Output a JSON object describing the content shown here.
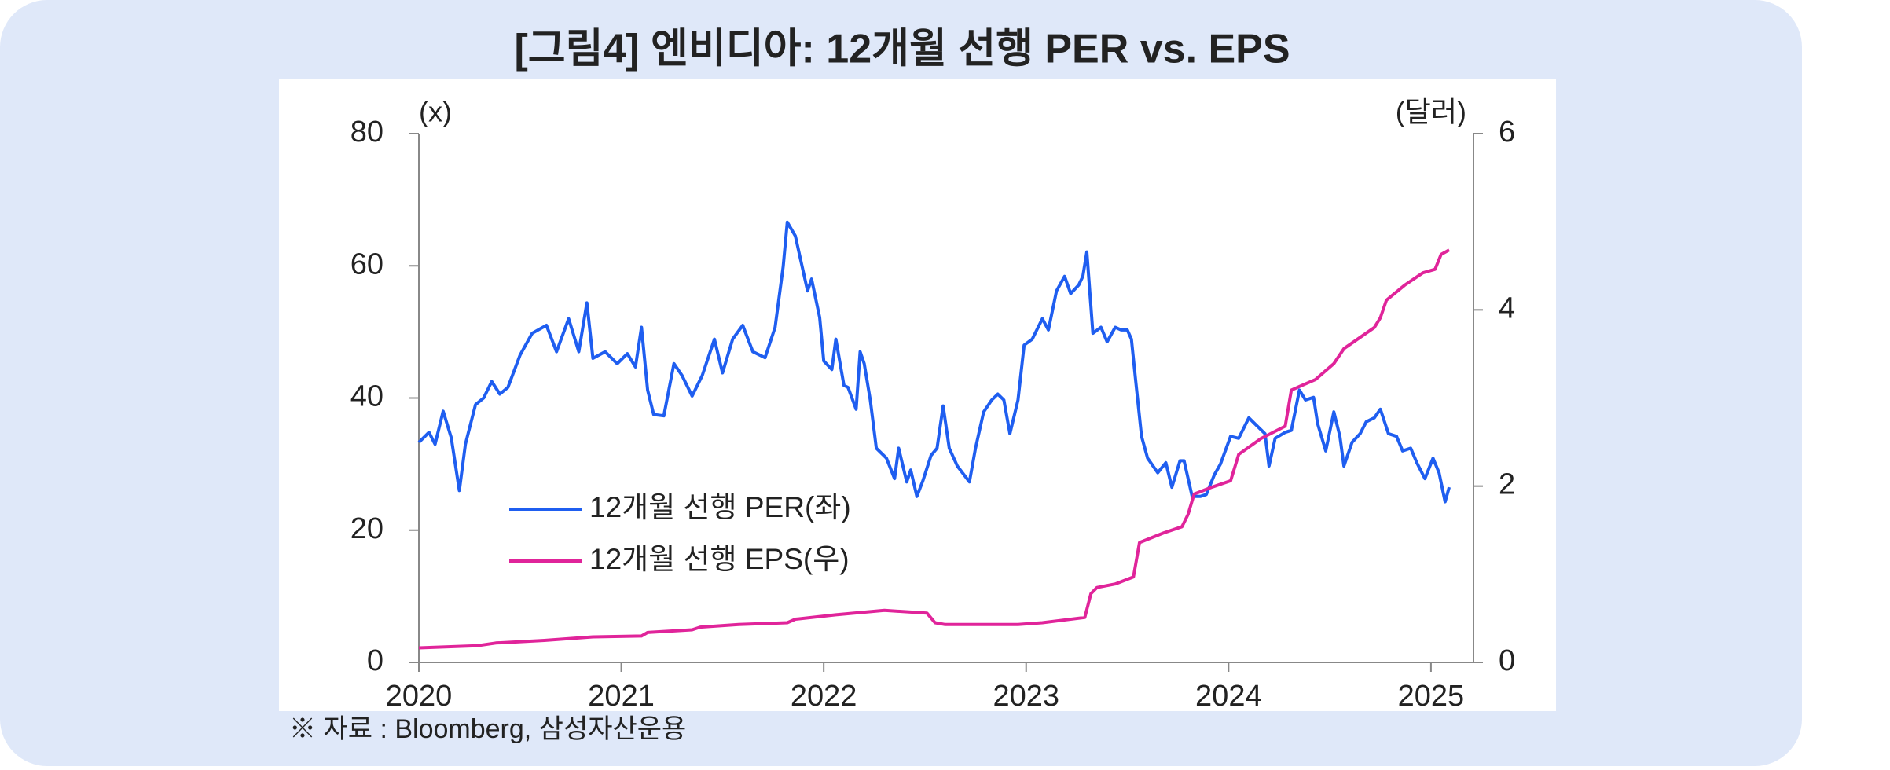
{
  "chart_data": {
    "type": "line",
    "title": "[그림4] 엔비디아: 12개월 선행 PER vs. EPS",
    "y_unit": "(x)",
    "y2_unit": "(달러)",
    "source": "※ 자료 : Bloomberg, 삼성자산운용",
    "xlim": [
      2020,
      2025.21
    ],
    "xticks": [
      2020,
      2021,
      2022,
      2023,
      2024,
      2025
    ],
    "ylim": [
      0,
      80
    ],
    "yticks": [
      0,
      20,
      40,
      60,
      80
    ],
    "y2lim": [
      0,
      6
    ],
    "y2ticks": [
      0,
      2,
      4,
      6
    ],
    "grid": false,
    "legend": "lower-left",
    "series": [
      {
        "name": "12개월 선행 PER(좌)",
        "color": "#1f5ef0",
        "x": [
          2020.0,
          2020.05,
          2020.08,
          2020.12,
          2020.16,
          2020.2,
          2020.23,
          2020.28,
          2020.32,
          2020.36,
          2020.4,
          2020.44,
          2020.5,
          2020.56,
          2020.63,
          2020.68,
          2020.74,
          2020.79,
          2020.83,
          2020.86,
          2020.92,
          2020.98,
          2021.03,
          2021.07,
          2021.1,
          2021.13,
          2021.16,
          2021.21,
          2021.26,
          2021.3,
          2021.35,
          2021.4,
          2021.46,
          2021.5,
          2021.55,
          2021.6,
          2021.65,
          2021.71,
          2021.76,
          2021.8,
          2021.82,
          2021.86,
          2021.88,
          2021.92,
          2021.94,
          2021.98,
          2022.0,
          2022.04,
          2022.06,
          2022.1,
          2022.12,
          2022.16,
          2022.18,
          2022.2,
          2022.23,
          2022.26,
          2022.31,
          2022.35,
          2022.37,
          2022.41,
          2022.43,
          2022.46,
          2022.49,
          2022.53,
          2022.56,
          2022.59,
          2022.62,
          2022.66,
          2022.72,
          2022.75,
          2022.79,
          2022.83,
          2022.86,
          2022.89,
          2022.92,
          2022.96,
          2022.99,
          2023.03,
          2023.08,
          2023.11,
          2023.15,
          2023.19,
          2023.22,
          2023.26,
          2023.28,
          2023.3,
          2023.33,
          2023.37,
          2023.4,
          2023.44,
          2023.47,
          2023.5,
          2023.52,
          2023.54,
          2023.57,
          2023.6,
          2023.65,
          2023.69,
          2023.72,
          2023.76,
          2023.78,
          2023.82,
          2023.86,
          2023.89,
          2023.93,
          2023.96,
          2024.01,
          2024.05,
          2024.1,
          2024.13,
          2024.18,
          2024.2,
          2024.23,
          2024.28,
          2024.31,
          2024.35,
          2024.38,
          2024.42,
          2024.44,
          2024.48,
          2024.52,
          2024.55,
          2024.57,
          2024.61,
          2024.65,
          2024.68,
          2024.72,
          2024.75,
          2024.79,
          2024.83,
          2024.86,
          2024.9,
          2024.93,
          2024.97,
          2025.01,
          2025.04,
          2025.07,
          2025.09
        ],
        "values": [
          33.3,
          34.8,
          33,
          38,
          34,
          26,
          33,
          39,
          40,
          42.5,
          40.6,
          41.6,
          46.5,
          49.8,
          51,
          47,
          52,
          47,
          54.4,
          46,
          47,
          45.2,
          46.7,
          44.7,
          50.7,
          41.2,
          37.5,
          37.3,
          45.2,
          43.4,
          40.3,
          43.4,
          48.9,
          43.8,
          48.9,
          51,
          47,
          46.1,
          50.7,
          59.9,
          66.6,
          64.5,
          61.7,
          56.2,
          58,
          52.2,
          45.6,
          44.3,
          48.9,
          41.9,
          41.6,
          38.3,
          47,
          45.2,
          39.7,
          32.4,
          30.9,
          27.8,
          32.4,
          27.3,
          29.1,
          25.1,
          27.5,
          31.3,
          32.4,
          38.8,
          32.4,
          29.7,
          27.3,
          32.4,
          37.9,
          39.7,
          40.6,
          39.7,
          34.6,
          39.7,
          48,
          48.9,
          52,
          50.3,
          56.2,
          58.4,
          55.8,
          57.1,
          58.4,
          62.1,
          49.8,
          50.7,
          48.5,
          50.7,
          50.3,
          50.3,
          48.9,
          43,
          34.2,
          30.9,
          28.7,
          30.2,
          26.5,
          30.5,
          30.5,
          25.1,
          25.1,
          25.4,
          28.4,
          30,
          34.2,
          33.9,
          37,
          36.1,
          34.6,
          29.7,
          33.9,
          34.8,
          35.1,
          41.2,
          39.7,
          40.1,
          36.1,
          32,
          37.9,
          34.2,
          29.7,
          33.3,
          34.6,
          36.4,
          37,
          38.3,
          34.6,
          34.2,
          32,
          32.4,
          30.2,
          27.8,
          30.9,
          28.7,
          24.3,
          26.5
        ]
      },
      {
        "name": "12개월 선행 EPS(우)",
        "color": "#e0249a",
        "axis": "y2",
        "x": [
          2020.0,
          2020.29,
          2020.38,
          2020.62,
          2020.86,
          2021.1,
          2021.13,
          2021.35,
          2021.39,
          2021.58,
          2021.82,
          2021.86,
          2022.06,
          2022.3,
          2022.51,
          2022.55,
          2022.6,
          2022.96,
          2023.08,
          2023.29,
          2023.32,
          2023.35,
          2023.44,
          2023.53,
          2023.56,
          2023.68,
          2023.77,
          2023.8,
          2023.83,
          2023.92,
          2024.01,
          2024.05,
          2024.16,
          2024.28,
          2024.31,
          2024.43,
          2024.52,
          2024.57,
          2024.72,
          2024.75,
          2024.78,
          2024.87,
          2024.96,
          2025.02,
          2025.05,
          2025.09
        ],
        "values": [
          0.165,
          0.19,
          0.22,
          0.25,
          0.29,
          0.3,
          0.34,
          0.37,
          0.4,
          0.43,
          0.45,
          0.49,
          0.54,
          0.59,
          0.56,
          0.45,
          0.43,
          0.43,
          0.45,
          0.51,
          0.78,
          0.85,
          0.89,
          0.97,
          1.36,
          1.47,
          1.54,
          1.68,
          1.91,
          1.99,
          2.06,
          2.36,
          2.54,
          2.68,
          3.09,
          3.21,
          3.39,
          3.56,
          3.8,
          3.91,
          4.11,
          4.28,
          4.42,
          4.46,
          4.63,
          4.68
        ]
      }
    ]
  }
}
